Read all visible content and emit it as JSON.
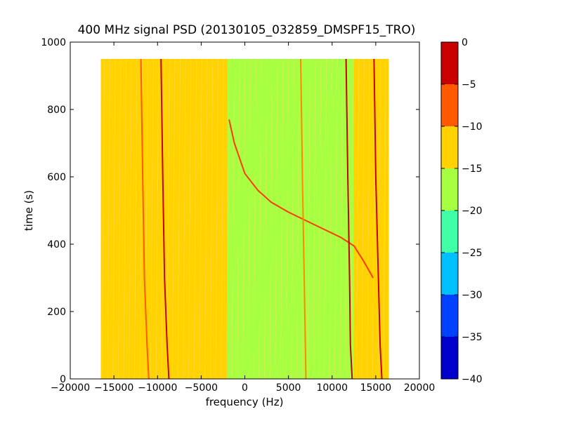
{
  "chart_data": {
    "type": "heatmap",
    "title": "400 MHz signal PSD (20130105_032859_DMSPF15_TRO)",
    "xlabel": "frequency (Hz)",
    "ylabel": "time (s)",
    "xlim": [
      -20000,
      20000
    ],
    "ylim": [
      0,
      1000
    ],
    "x_ticks": [
      -20000,
      -15000,
      -10000,
      -5000,
      0,
      5000,
      10000,
      15000,
      20000
    ],
    "x_tick_labels": [
      "−20000",
      "−15000",
      "−10000",
      "−5000",
      "0",
      "5000",
      "10000",
      "15000",
      "20000"
    ],
    "y_ticks": [
      0,
      200,
      400,
      600,
      800,
      1000
    ],
    "y_tick_labels": [
      "0",
      "200",
      "400",
      "600",
      "800",
      "1000"
    ],
    "data_extent": {
      "x": [
        -16500,
        16500
      ],
      "y": [
        0,
        950
      ]
    },
    "colorbar": {
      "levels": [
        -40,
        -35,
        -30,
        -25,
        -20,
        -15,
        -10,
        -5,
        0
      ],
      "tick_labels": [
        "−40",
        "−35",
        "−30",
        "−25",
        "−20",
        "−15",
        "−10",
        "−5",
        "0"
      ],
      "colors": [
        "#0000cd",
        "#0040ff",
        "#00bfff",
        "#40ffa6",
        "#a6ff40",
        "#ffd200",
        "#ff5a00",
        "#c80000"
      ]
    },
    "regions": [
      {
        "name": "background-band",
        "x": [
          -16500,
          16500
        ],
        "level": "-15 to -10",
        "color": "#ffd200"
      },
      {
        "name": "green-band",
        "x": [
          -2000,
          12500
        ],
        "level": "-20 to -15",
        "color": "#a6ff40"
      },
      {
        "name": "right-band",
        "x": [
          12500,
          16500
        ],
        "level": "-15 to -10",
        "color": "#ffd200"
      }
    ],
    "lines": [
      {
        "name": "carrier-left-1",
        "color": "#ff5a00",
        "points": [
          [
            -11000,
            0
          ],
          [
            -11200,
            100
          ],
          [
            -11500,
            300
          ],
          [
            -11700,
            600
          ],
          [
            -11900,
            950
          ]
        ]
      },
      {
        "name": "carrier-left-2",
        "color": "#c80000",
        "points": [
          [
            -8700,
            0
          ],
          [
            -8900,
            100
          ],
          [
            -9200,
            300
          ],
          [
            -9400,
            600
          ],
          [
            -9600,
            950
          ]
        ]
      },
      {
        "name": "doppler-trace",
        "color": "#ff3a00",
        "points": [
          [
            -1800,
            770
          ],
          [
            -1200,
            700
          ],
          [
            0,
            610
          ],
          [
            1500,
            560
          ],
          [
            3000,
            525
          ],
          [
            5000,
            495
          ],
          [
            7000,
            470
          ],
          [
            9000,
            445
          ],
          [
            11000,
            420
          ],
          [
            12500,
            395
          ],
          [
            13600,
            350
          ],
          [
            14700,
            300
          ]
        ]
      },
      {
        "name": "mid-line",
        "color": "#ff8a00",
        "points": [
          [
            7000,
            0
          ],
          [
            6800,
            300
          ],
          [
            6600,
            600
          ],
          [
            6400,
            950
          ]
        ]
      },
      {
        "name": "carrier-right-1",
        "color": "#c80000",
        "points": [
          [
            12300,
            0
          ],
          [
            12100,
            100
          ],
          [
            12000,
            300
          ],
          [
            11800,
            600
          ],
          [
            11600,
            950
          ]
        ]
      },
      {
        "name": "carrier-right-2",
        "color": "#c80000",
        "points": [
          [
            15700,
            0
          ],
          [
            15500,
            100
          ],
          [
            15300,
            300
          ],
          [
            15000,
            600
          ],
          [
            14800,
            950
          ]
        ]
      }
    ]
  }
}
